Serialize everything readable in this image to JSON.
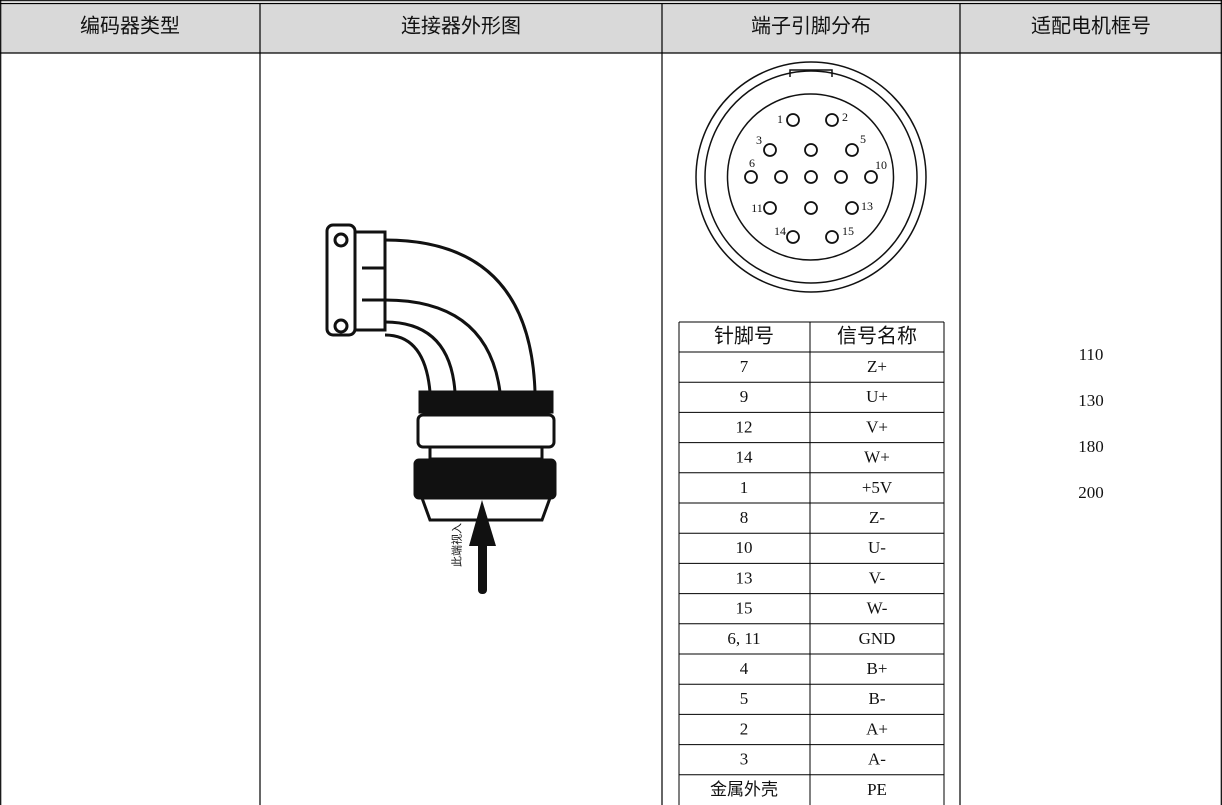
{
  "table": {
    "header": [
      "编码器类型",
      "连接器外形图",
      "端子引脚分布",
      "适配电机框号"
    ],
    "connector_label": "此端视入",
    "pin_labels": [
      "1",
      "2",
      "3",
      "5",
      "6",
      "10",
      "11",
      "13",
      "14",
      "15"
    ],
    "pin_table": {
      "header": [
        "针脚号",
        "信号名称"
      ],
      "rows": [
        [
          "7",
          "Z+"
        ],
        [
          "9",
          "U+"
        ],
        [
          "12",
          "V+"
        ],
        [
          "14",
          "W+"
        ],
        [
          "1",
          "+5V"
        ],
        [
          "8",
          "Z-"
        ],
        [
          "10",
          "U-"
        ],
        [
          "13",
          "V-"
        ],
        [
          "15",
          "W-"
        ],
        [
          "6, 11",
          "GND"
        ],
        [
          "4",
          "B+"
        ],
        [
          "5",
          "B-"
        ],
        [
          "2",
          "A+"
        ],
        [
          "3",
          "A-"
        ],
        [
          "金属外壳",
          "PE"
        ]
      ]
    },
    "motor_frames": [
      "110",
      "130",
      "180",
      "200"
    ]
  }
}
